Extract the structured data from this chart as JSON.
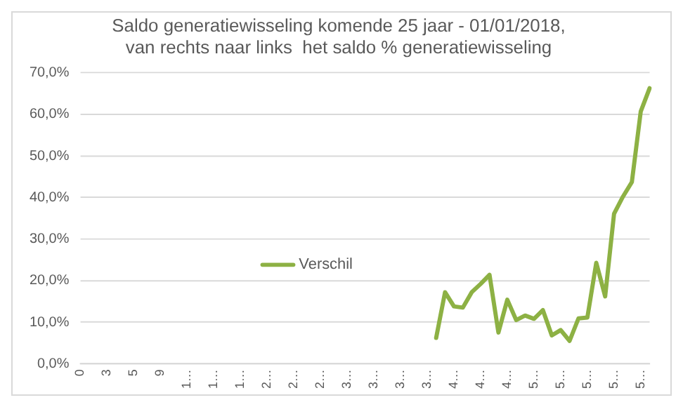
{
  "chart_data": {
    "type": "line",
    "title": "Saldo generatiewisseling komende 25 jaar - 01/01/2018,\nvan rechts naar links  het saldo % generatiewisseling",
    "categories": [
      "0",
      null,
      null,
      "3",
      null,
      null,
      "5",
      null,
      null,
      "9",
      null,
      null,
      "1…",
      null,
      null,
      "1…",
      null,
      null,
      "1…",
      null,
      null,
      "2…",
      null,
      null,
      "2…",
      null,
      null,
      "2…",
      null,
      null,
      "3…",
      null,
      null,
      "3…",
      null,
      null,
      "3…",
      null,
      null,
      "3…",
      null,
      null,
      "4…",
      null,
      null,
      "4…",
      null,
      null,
      "4…",
      null,
      null,
      "5…",
      null,
      null,
      "5…",
      null,
      null,
      "5…",
      null,
      null,
      "5…",
      null,
      null,
      "5…",
      null
    ],
    "series": [
      {
        "name": "Verschil",
        "color": "#8db144",
        "values": [
          null,
          null,
          null,
          null,
          null,
          null,
          null,
          null,
          null,
          null,
          null,
          null,
          null,
          null,
          null,
          null,
          null,
          null,
          null,
          null,
          null,
          null,
          null,
          null,
          null,
          null,
          null,
          null,
          null,
          null,
          null,
          null,
          null,
          null,
          null,
          null,
          null,
          null,
          null,
          null,
          6.2,
          17.2,
          13.8,
          13.5,
          17.2,
          19.2,
          21.4,
          7.5,
          15.4,
          10.5,
          11.6,
          10.8,
          12.9,
          6.8,
          8.1,
          5.5,
          10.9,
          11.1,
          24.3,
          16.2,
          36.1,
          40.2,
          43.7,
          60.7,
          66.3
        ]
      }
    ],
    "ylim": [
      0,
      70
    ],
    "yticks": [
      {
        "value": 0,
        "label": "0,0%"
      },
      {
        "value": 10,
        "label": "10,0%"
      },
      {
        "value": 20,
        "label": "20,0%"
      },
      {
        "value": 30,
        "label": "30,0%"
      },
      {
        "value": 40,
        "label": "40,0%"
      },
      {
        "value": 50,
        "label": "50,0%"
      },
      {
        "value": 60,
        "label": "60,0%"
      },
      {
        "value": 70,
        "label": "70,0%"
      }
    ],
    "grid": "y",
    "legend": "center",
    "marker": "none",
    "line_style": "solid"
  }
}
